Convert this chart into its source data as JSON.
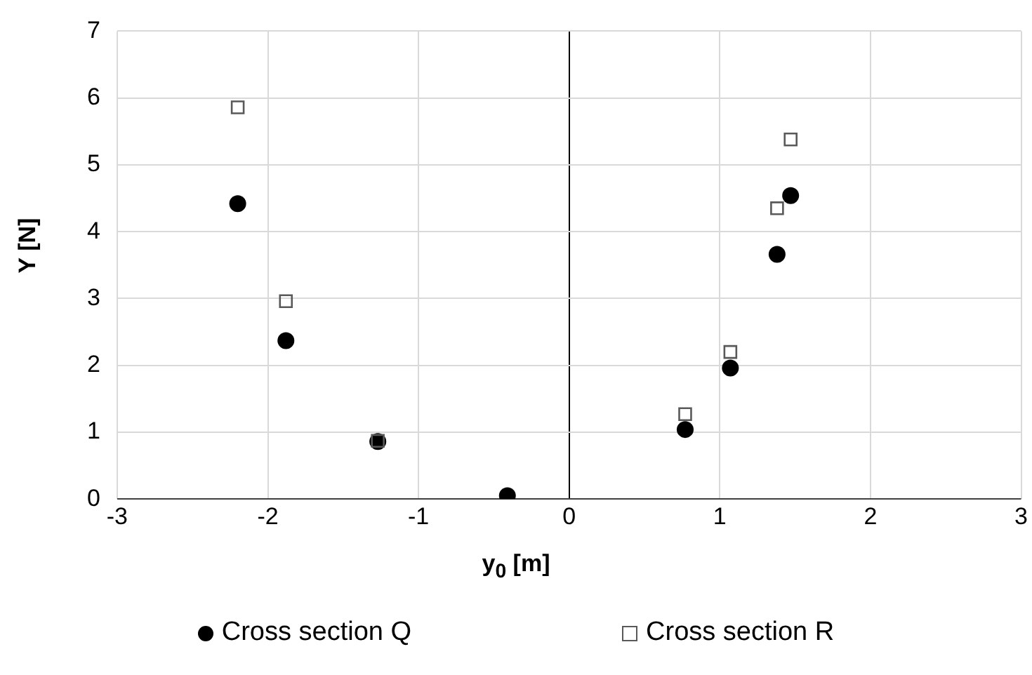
{
  "chart_data": {
    "type": "scatter",
    "xlabel": "y$_{0}$ [m]",
    "ylabel": "Y [N]",
    "series": [
      {
        "name": "Cross section Q",
        "color": "#000000",
        "marker": "circle",
        "x": [
          -2.2,
          -1.88,
          -1.27,
          -0.41,
          0.77,
          1.07,
          1.38,
          1.47
        ],
        "values": [
          4.42,
          2.37,
          0.86,
          0.05,
          1.04,
          1.96,
          3.66,
          4.54
        ]
      },
      {
        "name": "Cross section R",
        "color": "#595959",
        "marker": "square",
        "x": [
          -2.2,
          -1.88,
          -1.27,
          0.77,
          1.07,
          1.38,
          1.47
        ],
        "values": [
          5.86,
          2.96,
          0.87,
          1.27,
          2.2,
          4.35,
          5.38
        ]
      }
    ],
    "xlim": [
      -3,
      3
    ],
    "xticks": [
      -3,
      -2,
      -1,
      0,
      1,
      2,
      3
    ],
    "ylim": [
      0,
      7
    ],
    "yticks": [
      0,
      1,
      2,
      3,
      4,
      5,
      6,
      7
    ],
    "grid": true,
    "legend": "bottom"
  }
}
